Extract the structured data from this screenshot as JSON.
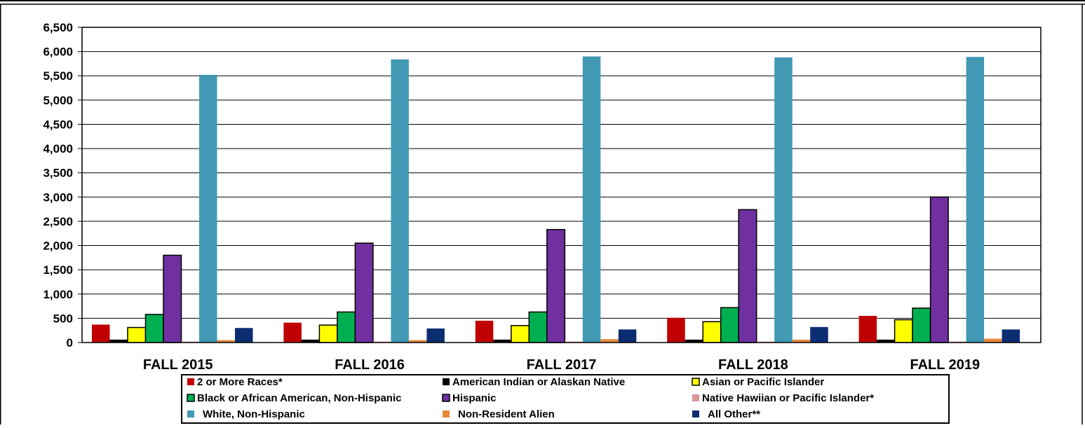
{
  "chart_data": {
    "type": "bar",
    "title": "",
    "xlabel": "",
    "ylabel": "",
    "categories": [
      "FALL 2015",
      "FALL 2016",
      "FALL 2017",
      "FALL 2018",
      "FALL 2019"
    ],
    "ylim": [
      0,
      6500
    ],
    "yticks": [
      0,
      500,
      1000,
      1500,
      2000,
      2500,
      3000,
      3500,
      4000,
      4500,
      5000,
      5500,
      6000,
      6500
    ],
    "ytick_labels": [
      "0",
      "500",
      "1,000",
      "1,500",
      "2,000",
      "2,500",
      "3,000",
      "3,500",
      "4,000",
      "4,500",
      "5,000",
      "5,500",
      "6,000",
      "6,500"
    ],
    "grid": true,
    "legend_position": "bottom",
    "series": [
      {
        "name": "2 or More Races*",
        "color": "#c00000",
        "outlined": false,
        "values": [
          370,
          410,
          450,
          510,
          550
        ]
      },
      {
        "name": "American Indian or Alaskan Native",
        "color": "#000000",
        "outlined": false,
        "values": [
          60,
          60,
          60,
          60,
          60
        ]
      },
      {
        "name": "Asian or Pacific Islander",
        "color": "#ffff00",
        "outlined": true,
        "values": [
          310,
          360,
          350,
          430,
          470
        ]
      },
      {
        "name": "Black or African American, Non-Hispanic",
        "color": "#00b050",
        "outlined": true,
        "values": [
          580,
          630,
          630,
          720,
          710
        ]
      },
      {
        "name": "Hispanic",
        "color": "#7030a0",
        "outlined": true,
        "values": [
          1800,
          2050,
          2330,
          2740,
          3000
        ]
      },
      {
        "name": "Native Hawiian or Pacific Islander*",
        "color": "#d99694",
        "outlined": false,
        "values": [
          20,
          20,
          20,
          20,
          20
        ]
      },
      {
        "name": "White, Non-Hispanic",
        "color": "#4199b4",
        "outlined": false,
        "values": [
          5520,
          5840,
          5900,
          5880,
          5890
        ]
      },
      {
        "name": "Non-Resident Alien",
        "color": "#e6883a",
        "outlined": false,
        "values": [
          50,
          50,
          70,
          60,
          80
        ]
      },
      {
        "name": "All Other**",
        "color": "#0b2d72",
        "outlined": false,
        "values": [
          300,
          290,
          270,
          320,
          270
        ]
      }
    ]
  }
}
